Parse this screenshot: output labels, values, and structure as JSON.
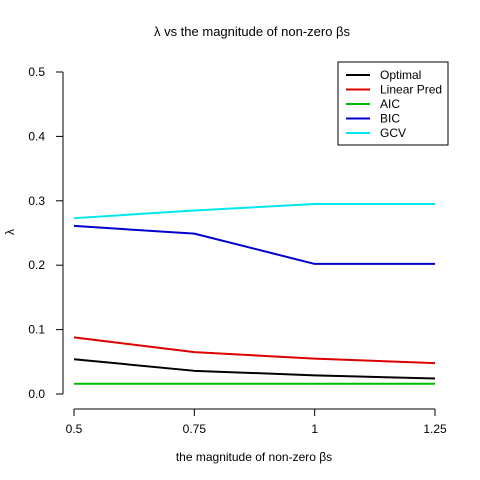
{
  "chart_data": {
    "type": "line",
    "title": "λ vs the magnitude of non-zero βs",
    "xlabel": "the magnitude of non-zero βs",
    "ylabel": "λ",
    "x": [
      0.5,
      0.75,
      1,
      1.25
    ],
    "x_ticks": [
      "0.5",
      "0.75",
      "1",
      "1.25"
    ],
    "y_ticks": [
      "0.0",
      "0.1",
      "0.2",
      "0.3",
      "0.4",
      "0.5"
    ],
    "xlim": [
      0.5,
      1.25
    ],
    "ylim": [
      0,
      0.5
    ],
    "legend_position": "top-right",
    "grid": false,
    "series": [
      {
        "name": "Optimal",
        "color": "#000000",
        "values": [
          0.054,
          0.036,
          0.029,
          0.024
        ]
      },
      {
        "name": "Linear Pred",
        "color": "#dd0000",
        "values": [
          0.088,
          0.065,
          0.055,
          0.048
        ]
      },
      {
        "name": "AIC",
        "color": "#00bb00",
        "values": [
          0.016,
          0.016,
          0.016,
          0.016
        ]
      },
      {
        "name": "BIC",
        "color": "#0000cc",
        "values": [
          0.261,
          0.249,
          0.202,
          0.202
        ]
      },
      {
        "name": "GCV",
        "color": "#00e8ee",
        "values": [
          0.273,
          0.285,
          0.295,
          0.295
        ]
      }
    ]
  }
}
